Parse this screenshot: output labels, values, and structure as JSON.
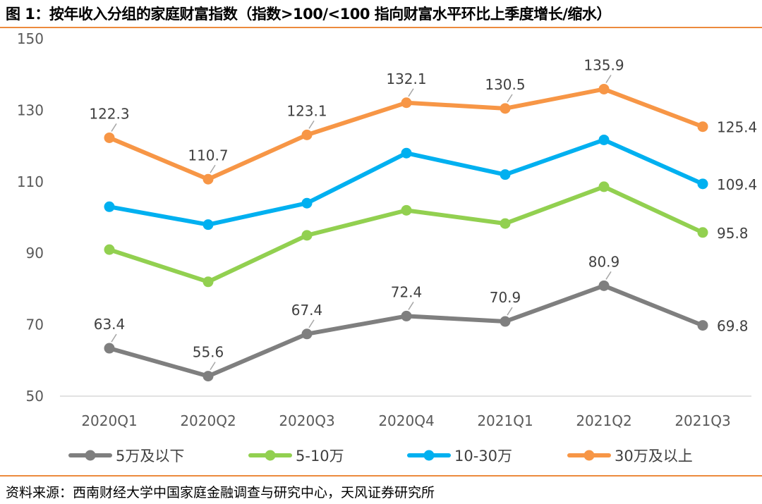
{
  "title": "图 1：按年收入分组的家庭财富指数（指数>100/<100 指向财富水平环比上季度增长/缩水）",
  "source": "资料来源：西南财经大学中国家庭金融调查与研究中心，天风证券研究所",
  "chart_data": {
    "type": "line",
    "title": "按年收入分组的家庭财富指数",
    "xlabel": "",
    "ylabel": "",
    "ylim": [
      50,
      150
    ],
    "yticks": [
      50,
      70,
      90,
      110,
      130,
      150
    ],
    "grid": false,
    "legend_position": "bottom",
    "categories": [
      "2020Q1",
      "2020Q2",
      "2020Q3",
      "2020Q4",
      "2021Q1",
      "2021Q2",
      "2021Q3"
    ],
    "series": [
      {
        "name": "5万及以下",
        "color": "#7f7f7f",
        "values": [
          63.4,
          55.6,
          67.4,
          72.4,
          70.9,
          80.9,
          69.8
        ],
        "labels": [
          "63.4",
          "55.6",
          "67.4",
          "72.4",
          "70.9",
          "80.9",
          "69.8"
        ]
      },
      {
        "name": "5-10万",
        "color": "#92d050",
        "values": [
          91.0,
          82.0,
          95.0,
          102.0,
          98.3,
          108.6,
          95.8
        ],
        "labels": [
          "",
          "",
          "",
          "",
          "",
          "",
          "95.8"
        ]
      },
      {
        "name": "10-30万",
        "color": "#00b0f0",
        "values": [
          103.0,
          98.0,
          104.0,
          118.0,
          112.0,
          121.7,
          109.4
        ],
        "labels": [
          "",
          "",
          "",
          "",
          "",
          "",
          "109.4"
        ]
      },
      {
        "name": "30万及以上",
        "color": "#f79646",
        "values": [
          122.3,
          110.7,
          123.1,
          132.1,
          130.5,
          135.9,
          125.4
        ],
        "labels": [
          "122.3",
          "110.7",
          "123.1",
          "132.1",
          "130.5",
          "135.9",
          "125.4"
        ]
      }
    ]
  }
}
